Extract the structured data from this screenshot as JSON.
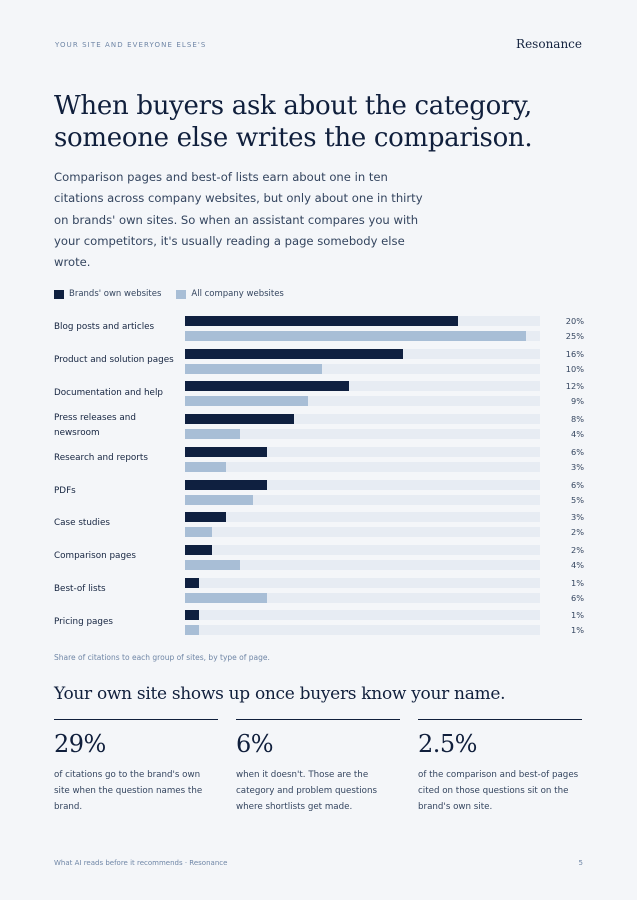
{
  "header": {
    "eyebrow": "YOUR SITE AND EVERYONE ELSE'S",
    "brand": "Resonance"
  },
  "title": "When buyers ask about the category, someone else writes the comparison.",
  "lede": "Comparison pages and best-of lists earn about one in ten citations across company websites, but only about one in thirty on brands' own sites. So when an assistant compares you with your competitors, it's usually reading a page somebody else wrote.",
  "colors": {
    "own": "#0f2040",
    "all": "#a8bed6",
    "track": "#e7ecf3"
  },
  "chart_data": {
    "type": "bar",
    "orientation": "horizontal",
    "categories": [
      "Blog posts and articles",
      "Product and solution pages",
      "Documentation and help",
      "Press releases and newsroom",
      "Research and reports",
      "PDFs",
      "Case studies",
      "Comparison pages",
      "Best-of lists",
      "Pricing pages"
    ],
    "series": [
      {
        "name": "Brands' own websites",
        "values": [
          20,
          16,
          12,
          8,
          6,
          6,
          3,
          2,
          1,
          1
        ]
      },
      {
        "name": "All company websites",
        "values": [
          25,
          10,
          9,
          4,
          3,
          5,
          2,
          4,
          6,
          1
        ]
      }
    ],
    "value_labels": [
      [
        "20%",
        "25%"
      ],
      [
        "16%",
        "10%"
      ],
      [
        "12%",
        "9%"
      ],
      [
        "8%",
        "4%"
      ],
      [
        "6%",
        "3%"
      ],
      [
        "6%",
        "5%"
      ],
      [
        "3%",
        "2%"
      ],
      [
        "2%",
        "4%"
      ],
      [
        "1%",
        "6%"
      ],
      [
        "1%",
        "1%"
      ]
    ],
    "xlim": [
      0,
      26
    ],
    "legend_position": "top-left",
    "caption": "Share of citations to each group of sites, by type of page."
  },
  "subhead": "Your own site shows up once buyers know your name.",
  "stats": [
    {
      "num": "29%",
      "desc": "of citations go to the brand's own site when the question names the brand."
    },
    {
      "num": "6%",
      "desc": "when it doesn't. Those are the category and problem questions where shortlists get made."
    },
    {
      "num": "2.5%",
      "desc": "of the comparison and best-of pages cited on those questions sit on the brand's own site."
    }
  ],
  "footer": {
    "left": "What AI reads before it recommends · Resonance",
    "page": "5"
  }
}
